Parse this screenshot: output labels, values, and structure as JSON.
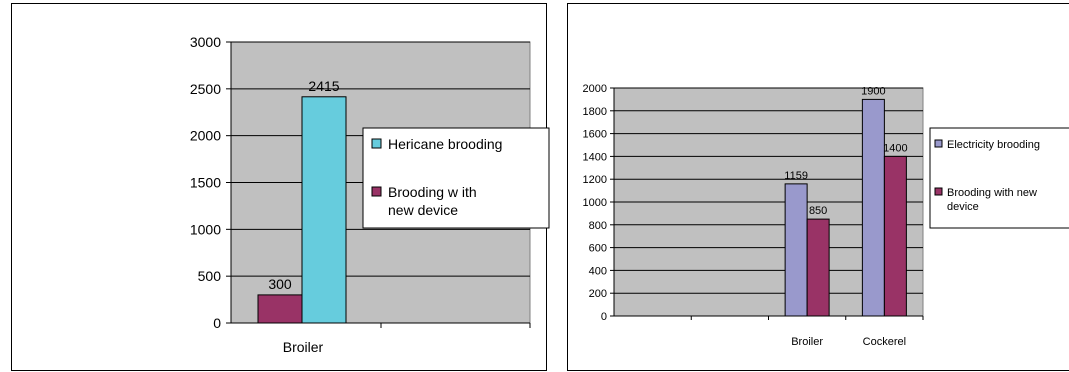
{
  "chart_data": [
    {
      "type": "bar",
      "categories": [
        "Broiler"
      ],
      "series": [
        {
          "name": "Brooding with new device",
          "values": [
            300
          ],
          "color": "#993366"
        },
        {
          "name": "Hericane brooding",
          "values": [
            2415
          ],
          "color": "#66CCDD"
        }
      ],
      "legend_lines": [
        [
          "Hericane brooding"
        ],
        [
          "Brooding w ith",
          "new device"
        ]
      ],
      "legend_order": [
        1,
        0
      ],
      "ylim": [
        0,
        3000
      ],
      "yticks": [
        "0",
        "500",
        "1000",
        "1500",
        "2000",
        "2500",
        "3000"
      ],
      "data_labels": [
        "300",
        "2415"
      ],
      "grid": true,
      "plot_background": "#C0C0C0",
      "legend_position": "right"
    },
    {
      "type": "bar",
      "categories": [
        "",
        "",
        "Broiler",
        "Cockerel"
      ],
      "series": [
        {
          "name": "Electricity brooding",
          "values": [
            null,
            null,
            1159,
            1900
          ],
          "color": "#9999CC"
        },
        {
          "name": "Brooding with new device",
          "values": [
            null,
            null,
            850,
            1400
          ],
          "color": "#993366"
        }
      ],
      "legend_lines": [
        [
          "Electricity brooding"
        ],
        [
          "Brooding with new",
          "device"
        ]
      ],
      "legend_order": [
        0,
        1
      ],
      "ylim": [
        0,
        2000
      ],
      "yticks": [
        "0",
        "200",
        "400",
        "600",
        "800",
        "1000",
        "1200",
        "1400",
        "1600",
        "1800",
        "2000"
      ],
      "data_labels": [
        [
          "1159",
          "1900"
        ],
        [
          "850",
          "1400"
        ]
      ],
      "grid": true,
      "plot_background": "#C0C0C0",
      "legend_position": "right"
    }
  ]
}
